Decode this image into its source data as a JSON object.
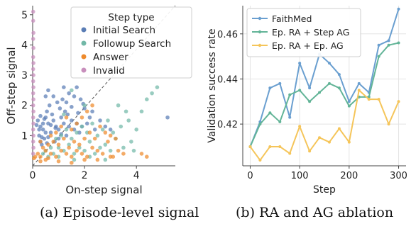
{
  "chart_data": [
    {
      "type": "scatter",
      "xlabel": "On-step signal",
      "ylabel": "Off-step signal",
      "xlim": [
        0,
        5.5
      ],
      "ylim": [
        0,
        5.3
      ],
      "xticks": [
        0,
        2,
        4
      ],
      "yticks": [
        1,
        2,
        3,
        4,
        5
      ],
      "diagonal_reference_line": true,
      "legend": {
        "title": "Step type",
        "position": "top-right"
      },
      "series": [
        {
          "name": "Initial Search",
          "color": "#5a7db5",
          "points": [
            [
              0.2,
              1.5
            ],
            [
              0.3,
              1.3
            ],
            [
              0.4,
              1.2
            ],
            [
              0.25,
              1.0
            ],
            [
              0.3,
              0.8
            ],
            [
              0.5,
              1.6
            ],
            [
              0.6,
              1.4
            ],
            [
              0.45,
              0.9
            ],
            [
              0.35,
              0.7
            ],
            [
              0.7,
              1.1
            ],
            [
              0.8,
              1.5
            ],
            [
              0.9,
              1.3
            ],
            [
              1.0,
              1.2
            ],
            [
              0.55,
              1.8
            ],
            [
              0.65,
              2.0
            ],
            [
              0.75,
              1.7
            ],
            [
              1.1,
              1.6
            ],
            [
              1.2,
              1.4
            ],
            [
              1.3,
              1.0
            ],
            [
              1.4,
              1.3
            ],
            [
              1.5,
              1.5
            ],
            [
              1.0,
              0.9
            ],
            [
              0.85,
              0.8
            ],
            [
              0.4,
              1.4
            ],
            [
              0.5,
              1.1
            ],
            [
              0.6,
              0.95
            ],
            [
              0.95,
              2.1
            ],
            [
              1.05,
              1.9
            ],
            [
              1.15,
              2.2
            ],
            [
              1.25,
              1.8
            ],
            [
              1.35,
              1.7
            ],
            [
              1.6,
              1.2
            ],
            [
              1.7,
              1.4
            ],
            [
              1.8,
              1.1
            ],
            [
              1.9,
              1.3
            ],
            [
              0.3,
              1.65
            ],
            [
              0.45,
              1.55
            ],
            [
              0.7,
              1.35
            ],
            [
              0.88,
              1.25
            ],
            [
              1.6,
              2.3
            ],
            [
              1.7,
              2.6
            ],
            [
              1.85,
              2.2
            ],
            [
              2.0,
              1.9
            ],
            [
              2.2,
              1.6
            ],
            [
              2.4,
              1.2
            ],
            [
              2.6,
              1.5
            ],
            [
              1.2,
              2.6
            ],
            [
              1.4,
              2.4
            ],
            [
              0.8,
              2.3
            ],
            [
              0.6,
              2.5
            ],
            [
              0.25,
              1.2
            ],
            [
              0.35,
              0.95
            ],
            [
              0.15,
              1.35
            ],
            [
              0.55,
              0.75
            ],
            [
              1.1,
              1.05
            ],
            [
              1.75,
              1.75
            ],
            [
              1.95,
              2.05
            ],
            [
              2.1,
              1.4
            ],
            [
              2.3,
              1.8
            ],
            [
              2.8,
              1.3
            ],
            [
              3.0,
              1.2
            ],
            [
              0.5,
              2.3
            ],
            [
              1.3,
              2.1
            ],
            [
              1.5,
              1.95
            ],
            [
              5.2,
              1.6
            ]
          ]
        },
        {
          "name": "Followup Search",
          "color": "#72b8a7",
          "points": [
            [
              0.6,
              0.3
            ],
            [
              0.8,
              0.4
            ],
            [
              1.0,
              0.6
            ],
            [
              1.2,
              0.5
            ],
            [
              1.4,
              0.7
            ],
            [
              1.6,
              0.4
            ],
            [
              1.8,
              0.6
            ],
            [
              2.0,
              0.5
            ],
            [
              2.2,
              0.8
            ],
            [
              2.4,
              0.4
            ],
            [
              2.6,
              0.6
            ],
            [
              2.8,
              0.7
            ],
            [
              3.0,
              0.5
            ],
            [
              3.2,
              0.9
            ],
            [
              3.5,
              0.6
            ],
            [
              3.8,
              0.8
            ],
            [
              1.1,
              1.0
            ],
            [
              1.3,
              1.2
            ],
            [
              1.5,
              0.9
            ],
            [
              1.7,
              1.1
            ],
            [
              1.9,
              1.3
            ],
            [
              2.1,
              1.1
            ],
            [
              2.3,
              1.4
            ],
            [
              2.5,
              1.0
            ],
            [
              2.7,
              1.2
            ],
            [
              2.9,
              1.5
            ],
            [
              3.1,
              1.1
            ],
            [
              3.4,
              1.3
            ],
            [
              3.7,
              1.5
            ],
            [
              4.0,
              1.2
            ],
            [
              4.2,
              1.8
            ],
            [
              4.4,
              2.2
            ],
            [
              4.6,
              2.4
            ],
            [
              4.8,
              2.6
            ],
            [
              3.3,
              2.0
            ],
            [
              3.6,
              1.8
            ],
            [
              2.0,
              2.0
            ],
            [
              1.5,
              2.5
            ],
            [
              1.2,
              1.7
            ],
            [
              0.9,
              0.9
            ],
            [
              0.7,
              0.6
            ],
            [
              0.5,
              0.5
            ],
            [
              1.0,
              0.3
            ],
            [
              1.6,
              0.2
            ],
            [
              2.2,
              0.3
            ],
            [
              2.8,
              0.2
            ],
            [
              0.4,
              0.4
            ],
            [
              3.9,
              0.5
            ]
          ]
        },
        {
          "name": "Answer",
          "color": "#ee8a2c",
          "points": [
            [
              0.2,
              0.4
            ],
            [
              0.3,
              0.3
            ],
            [
              0.5,
              0.5
            ],
            [
              0.7,
              0.4
            ],
            [
              0.9,
              0.3
            ],
            [
              1.1,
              0.5
            ],
            [
              1.3,
              0.4
            ],
            [
              1.5,
              0.3
            ],
            [
              1.7,
              0.5
            ],
            [
              1.9,
              0.4
            ],
            [
              2.1,
              0.3
            ],
            [
              2.3,
              0.6
            ],
            [
              2.5,
              0.5
            ],
            [
              2.7,
              0.4
            ],
            [
              2.9,
              0.8
            ],
            [
              3.1,
              0.3
            ],
            [
              3.3,
              0.5
            ],
            [
              0.4,
              0.6
            ],
            [
              0.6,
              0.7
            ],
            [
              0.8,
              0.8
            ],
            [
              1.0,
              0.7
            ],
            [
              1.2,
              0.9
            ],
            [
              1.4,
              0.6
            ],
            [
              1.6,
              0.8
            ],
            [
              1.8,
              0.7
            ],
            [
              2.0,
              0.9
            ],
            [
              2.2,
              1.1
            ],
            [
              2.4,
              0.9
            ],
            [
              2.6,
              1.3
            ],
            [
              2.8,
              1.1
            ],
            [
              3.0,
              1.0
            ],
            [
              3.2,
              0.9
            ],
            [
              1.5,
              1.2
            ],
            [
              1.7,
              1.4
            ],
            [
              1.9,
              1.6
            ],
            [
              2.1,
              1.8
            ],
            [
              2.3,
              2.0
            ],
            [
              1.3,
              1.6
            ],
            [
              1.1,
              1.3
            ],
            [
              0.9,
              1.1
            ],
            [
              0.5,
              0.2
            ],
            [
              1.0,
              0.15
            ],
            [
              1.5,
              0.1
            ],
            [
              2.0,
              0.2
            ],
            [
              0.3,
              0.8
            ],
            [
              0.1,
              0.3
            ],
            [
              2.5,
              0.2
            ],
            [
              3.0,
              0.3
            ],
            [
              3.5,
              0.4
            ],
            [
              4.2,
              0.4
            ],
            [
              4.4,
              0.3
            ],
            [
              0.7,
              1.0
            ],
            [
              0.3,
              0.15
            ],
            [
              0.05,
              0.25
            ],
            [
              0.6,
              0.25
            ]
          ]
        },
        {
          "name": "Invalid",
          "color": "#c88ebc",
          "points": [
            [
              0.02,
              5.1
            ],
            [
              0.02,
              4.8
            ],
            [
              0.03,
              4.4
            ],
            [
              0.02,
              4.2
            ],
            [
              0.03,
              3.9
            ],
            [
              0.02,
              3.6
            ],
            [
              0.03,
              3.4
            ],
            [
              0.02,
              3.2
            ],
            [
              0.03,
              3.0
            ],
            [
              0.02,
              2.8
            ],
            [
              0.03,
              2.6
            ],
            [
              0.02,
              2.4
            ],
            [
              0.03,
              2.2
            ],
            [
              0.02,
              2.0
            ],
            [
              0.03,
              1.8
            ],
            [
              0.02,
              1.6
            ],
            [
              0.03,
              1.4
            ],
            [
              0.02,
              1.2
            ],
            [
              0.03,
              1.0
            ],
            [
              0.02,
              0.8
            ],
            [
              0.03,
              0.6
            ],
            [
              0.02,
              0.4
            ]
          ]
        }
      ]
    },
    {
      "type": "line",
      "xlabel": "Step",
      "ylabel": "Validation success rate",
      "xlim": [
        -15,
        315
      ],
      "ylim": [
        0.4015,
        0.4725
      ],
      "xticks": [
        0,
        100,
        200,
        300
      ],
      "yticks": [
        0.42,
        0.44,
        0.46
      ],
      "ytick_labels": [
        "0.42",
        "0.44",
        "0.46"
      ],
      "grid": true,
      "legend": {
        "position": "top-left"
      },
      "x": [
        0,
        20,
        40,
        60,
        80,
        100,
        120,
        140,
        160,
        180,
        200,
        220,
        240,
        260,
        280,
        300
      ],
      "series": [
        {
          "name": "FaithMed",
          "color": "#6a9fd0",
          "values": [
            0.41,
            0.421,
            0.436,
            0.438,
            0.423,
            0.447,
            0.436,
            0.451,
            0.447,
            0.442,
            0.43,
            0.438,
            0.434,
            0.455,
            0.457,
            0.471
          ]
        },
        {
          "name": "Ep. RA + Step AG",
          "color": "#62b497",
          "values": [
            0.41,
            0.42,
            0.425,
            0.421,
            0.433,
            0.435,
            0.43,
            0.434,
            0.438,
            0.436,
            0.428,
            0.432,
            0.432,
            0.45,
            0.455,
            0.456
          ]
        },
        {
          "name": "Ep. RA + Ep. AG",
          "color": "#f5c55a",
          "values": [
            0.41,
            0.404,
            0.41,
            0.41,
            0.407,
            0.419,
            0.408,
            0.414,
            0.412,
            0.418,
            0.412,
            0.435,
            0.431,
            0.431,
            0.42,
            0.43
          ]
        }
      ]
    }
  ],
  "captions": {
    "a": "(a) Episode-level signal",
    "b": "(b) RA and AG ablation"
  }
}
